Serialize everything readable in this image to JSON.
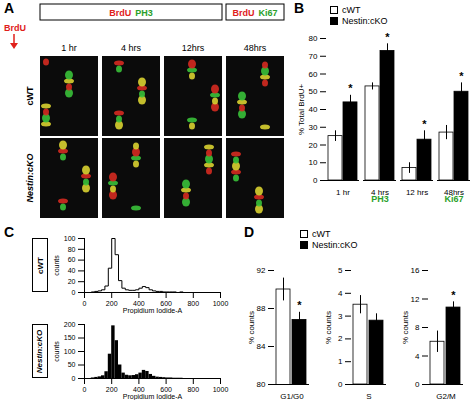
{
  "figure_a": {
    "panel": "A",
    "stains": [
      [
        {
          "text": "BrdU",
          "color": "#e0201b"
        },
        {
          "text": "PH3",
          "color": "#2aa02a"
        }
      ],
      [
        {
          "text": "BrdU",
          "color": "#e0201b"
        },
        {
          "text": "Ki67",
          "color": "#2aa02a"
        }
      ]
    ],
    "pulse": {
      "text": "BrdU",
      "color": "#e0201b"
    },
    "timepoints": [
      "1 hr",
      "4 hrs",
      "12hrs",
      "48hrs"
    ],
    "rows": [
      "cWT",
      "Nestin:cKO"
    ]
  },
  "chart_data": [
    {
      "panel": "B",
      "type": "bar",
      "y_label": "% Total BrdU+",
      "categories": [
        "1 hr",
        "4 hrs",
        "12 hrs",
        "48hrs"
      ],
      "series": [
        {
          "name": "cWT",
          "color": "#ffffff",
          "values": [
            25,
            53,
            7,
            27
          ],
          "errors": [
            3,
            2,
            3,
            4
          ]
        },
        {
          "name": "Nestin:cKO",
          "color": "#000000",
          "values": [
            44,
            73,
            23,
            50
          ],
          "errors": [
            4,
            4,
            5,
            5
          ]
        }
      ],
      "groups": [
        {
          "label": "PH3",
          "categories": [
            "1 hr",
            "4 hrs",
            "12 hrs"
          ],
          "color": "#2aa02a"
        },
        {
          "label": "Ki67",
          "categories": [
            "48hrs"
          ],
          "color": "#2aa02a"
        }
      ],
      "annotations": [
        {
          "category": "1 hr",
          "series": "Nestin:cKO",
          "text": "*"
        },
        {
          "category": "4 hrs",
          "series": "Nestin:cKO",
          "text": "*"
        },
        {
          "category": "12 hrs",
          "series": "Nestin:cKO",
          "text": "*"
        },
        {
          "category": "48hrs",
          "series": "Nestin:cKO",
          "text": "*"
        }
      ],
      "ylim": [
        0,
        80
      ],
      "yticks": [
        0,
        10,
        20,
        30,
        40,
        50,
        60,
        70,
        80
      ],
      "legend": "top"
    },
    {
      "panel": "C",
      "type": "histogram",
      "row_label": "cWT",
      "x_label": "Propidium Iodide-A",
      "y_label": "counts",
      "bins": [
        0,
        25,
        50,
        75,
        100,
        125,
        150,
        175,
        200,
        225,
        250,
        275,
        300,
        325,
        350,
        375,
        400,
        425,
        450,
        475,
        500,
        525,
        550,
        575,
        600,
        625,
        650,
        675,
        700,
        725,
        750,
        775,
        800,
        825,
        850,
        875,
        900,
        925,
        950,
        975,
        1000
      ],
      "counts": [
        0,
        0,
        1,
        2,
        3,
        5,
        12,
        45,
        100,
        70,
        22,
        8,
        5,
        4,
        4,
        5,
        8,
        11,
        9,
        5,
        3,
        2,
        2,
        1,
        1,
        1,
        1,
        0,
        1,
        0,
        0,
        0,
        0,
        0,
        0,
        0,
        0,
        0,
        0,
        0
      ],
      "color": "#000000",
      "line_style": "solid",
      "xlim": [
        0,
        1000
      ],
      "xticks": [
        0,
        200,
        400,
        600,
        800,
        1000
      ],
      "ylim": [
        0,
        100
      ],
      "yticks": [
        0,
        20,
        40,
        60,
        80,
        100
      ]
    },
    {
      "panel": "C",
      "type": "histogram",
      "row_label": "Nestin:cKO",
      "x_label": "Propidium Iodide-A",
      "y_label": "counts",
      "bins": [
        0,
        25,
        50,
        75,
        100,
        125,
        150,
        175,
        200,
        225,
        250,
        275,
        300,
        325,
        350,
        375,
        400,
        425,
        450,
        475,
        500,
        525,
        550,
        575,
        600,
        625,
        650,
        675,
        700,
        725,
        750,
        775,
        800,
        825,
        850,
        875,
        900,
        925,
        950,
        975,
        1000
      ],
      "counts": [
        0,
        0,
        2,
        4,
        6,
        10,
        25,
        90,
        195,
        140,
        50,
        20,
        12,
        10,
        11,
        14,
        20,
        30,
        26,
        15,
        8,
        5,
        4,
        3,
        2,
        2,
        1,
        1,
        1,
        0,
        0,
        0,
        0,
        0,
        0,
        0,
        0,
        0,
        0,
        0
      ],
      "color": "#000000",
      "xlim": [
        0,
        1000
      ],
      "xticks": [
        0,
        200,
        400,
        600,
        800,
        1000
      ],
      "ylim": [
        0,
        200
      ],
      "yticks": [
        0,
        50,
        100,
        150,
        200
      ]
    },
    {
      "panel": "D",
      "type": "bar",
      "y_label": "% counts",
      "categories": [
        "G1/G0"
      ],
      "series": [
        {
          "name": "cWT",
          "color": "#ffffff",
          "values": [
            90
          ],
          "errors": [
            1.2
          ]
        },
        {
          "name": "Nestin:cKO",
          "color": "#000000",
          "values": [
            86.8
          ],
          "errors": [
            0.8
          ]
        }
      ],
      "annotations": [
        {
          "category": "G1/G0",
          "series": "Nestin:cKO",
          "text": "*"
        }
      ],
      "ylim": [
        80,
        92
      ],
      "yticks": [
        80,
        84,
        88,
        92
      ],
      "legend": "top"
    },
    {
      "panel": "D",
      "type": "bar",
      "y_label": "% counts",
      "categories": [
        "S"
      ],
      "series": [
        {
          "name": "cWT",
          "color": "#ffffff",
          "values": [
            3.5
          ],
          "errors": [
            0.4
          ]
        },
        {
          "name": "Nestin:cKO",
          "color": "#000000",
          "values": [
            2.8
          ],
          "errors": [
            0.3
          ]
        }
      ],
      "ylim": [
        0,
        5
      ],
      "yticks": [
        0,
        1,
        2,
        3,
        4,
        5
      ]
    },
    {
      "panel": "D",
      "type": "bar",
      "y_label": "% counts",
      "categories": [
        "G2/M"
      ],
      "series": [
        {
          "name": "cWT",
          "color": "#ffffff",
          "values": [
            6
          ],
          "errors": [
            1.5
          ]
        },
        {
          "name": "Nestin:cKO",
          "color": "#000000",
          "values": [
            10.8
          ],
          "errors": [
            0.8
          ]
        }
      ],
      "annotations": [
        {
          "category": "G2/M",
          "series": "Nestin:cKO",
          "text": "*"
        }
      ],
      "ylim": [
        0,
        16
      ],
      "yticks": [
        0,
        4,
        8,
        12,
        16
      ]
    }
  ]
}
